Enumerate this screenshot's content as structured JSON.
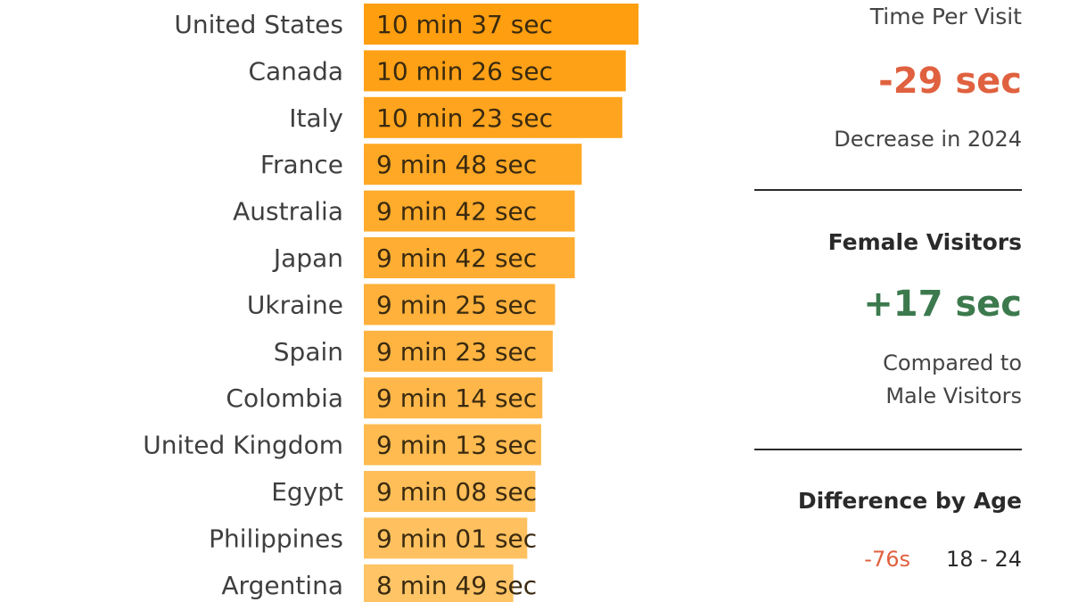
{
  "chart_data": {
    "type": "bar",
    "orientation": "horizontal",
    "categories": [
      "United States",
      "Canada",
      "Italy",
      "France",
      "Australia",
      "Japan",
      "Ukraine",
      "Spain",
      "Colombia",
      "United Kingdom",
      "Egypt",
      "Philippines",
      "Argentina"
    ],
    "value_labels": [
      "10 min 37 sec",
      "10 min 26 sec",
      "10 min 23 sec",
      "9 min 48 sec",
      "9 min 42 sec",
      "9 min 42 sec",
      "9 min 25 sec",
      "9 min 23 sec",
      "9 min 14 sec",
      "9 min 13 sec",
      "9 min 08 sec",
      "9 min 01 sec",
      "8 min 49 sec"
    ],
    "values": [
      637,
      626,
      623,
      588,
      582,
      582,
      565,
      563,
      554,
      553,
      548,
      541,
      529
    ],
    "unit": "seconds",
    "colors": {
      "top": "#FF9E0F",
      "bottom": "#FFC466"
    }
  },
  "side_panel": {
    "time_per_visit": {
      "title": "Time Per Visit",
      "value": "-29 sec",
      "caption": "Decrease in 2024",
      "color": "#E0613F"
    },
    "female_visitors": {
      "title": "Female Visitors",
      "value": "+17 sec",
      "caption_line1": "Compared to",
      "caption_line2": "Male Visitors",
      "color": "#3C7A4E"
    },
    "age_difference": {
      "title": "Difference by Age",
      "rows": [
        {
          "diff": "-76s",
          "range": "18 - 24"
        }
      ],
      "diff_color": "#E0613F"
    }
  }
}
